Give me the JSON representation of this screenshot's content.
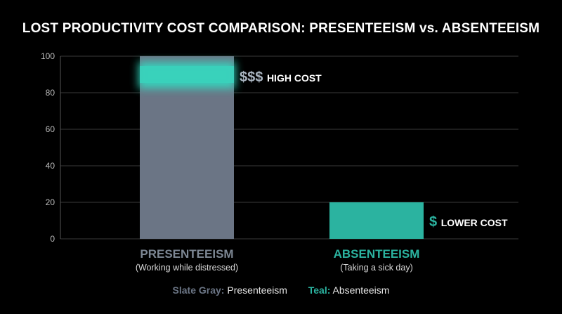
{
  "chart_data": {
    "type": "bar",
    "title": "LOST PRODUCTIVITY COST COMPARISON: PRESENTEEISM vs. ABSENTEEISM",
    "categories": [
      "PRESENTEEISM",
      "ABSENTEEISM"
    ],
    "category_sublabels": [
      "(Working while distressed)",
      "(Taking a sick day)"
    ],
    "values": [
      100,
      20
    ],
    "colors": [
      "#6b7585",
      "#2bb3a0"
    ],
    "ylim": [
      0,
      100
    ],
    "yticks": [
      0,
      20,
      40,
      60,
      80,
      100
    ],
    "grid": true,
    "annotations": [
      {
        "symbol": "$$$",
        "text": "HIGH COST"
      },
      {
        "symbol": "$",
        "text": "LOWER COST"
      }
    ],
    "legend": {
      "placement": "bottom-center",
      "entries": [
        {
          "key": "Slate Gray:",
          "label": "Presenteeism",
          "key_color": "#6b7585"
        },
        {
          "key": "Teal:",
          "label": "Absenteeism",
          "key_color": "#2bb3a0"
        }
      ]
    }
  }
}
